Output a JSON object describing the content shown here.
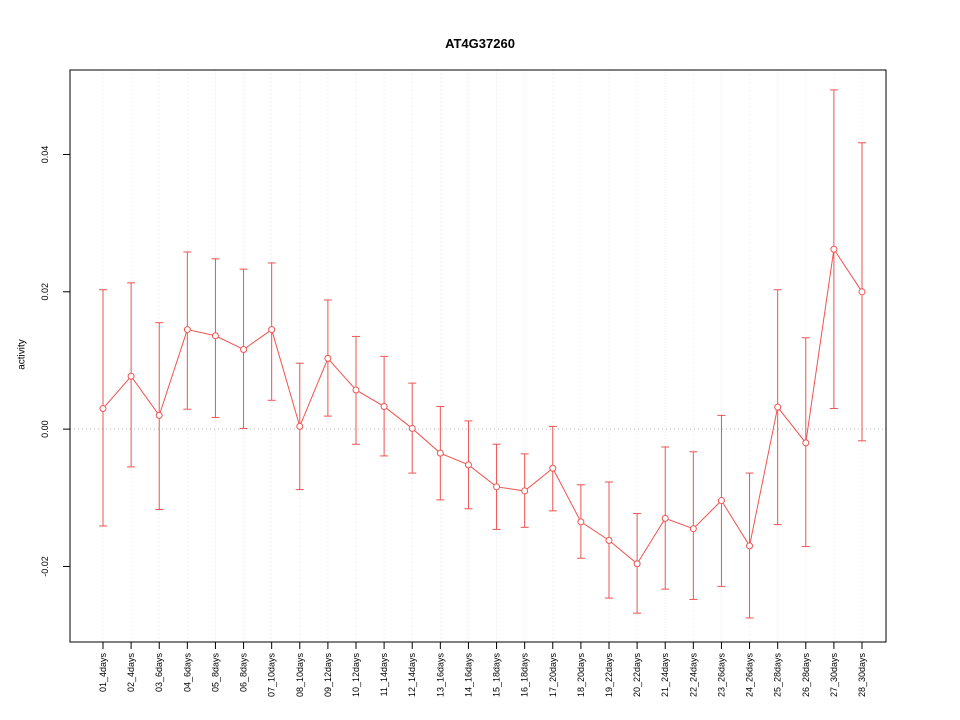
{
  "title": "AT4G37260",
  "chart_data": {
    "type": "line",
    "title": "AT4G37260",
    "xlabel": "",
    "ylabel": "activity",
    "legend": "none",
    "grid": "dotted vertical gridline at each category; dotted horizontal reference line at y=0",
    "ylim": [
      -0.031,
      0.0523
    ],
    "y_ticks": [
      -0.02,
      0,
      0.02,
      0.04
    ],
    "y_tick_labels": [
      "-0.02",
      "0.00",
      "0.02",
      "0.04"
    ],
    "categories": [
      "01_4days",
      "02_4days",
      "03_6days",
      "04_6days",
      "05_8days",
      "06_8days",
      "07_10days",
      "08_10days",
      "09_12days",
      "10_12days",
      "11_14days",
      "12_14days",
      "13_16days",
      "14_16days",
      "15_18days",
      "16_18days",
      "17_20days",
      "18_20days",
      "19_22days",
      "20_22days",
      "21_24days",
      "22_24days",
      "23_26days",
      "24_26days",
      "25_28days",
      "26_28days",
      "27_30days",
      "28_30days"
    ],
    "series": [
      {
        "name": "activity",
        "color": "#ef5350",
        "marker": "open-circle",
        "values": [
          0.003,
          0.0077,
          0.002,
          0.0145,
          0.0136,
          0.0116,
          0.0145,
          0.0004,
          0.0103,
          0.0057,
          0.0033,
          0.0001,
          -0.0035,
          -0.0052,
          -0.0084,
          -0.009,
          -0.0057,
          -0.0135,
          -0.0162,
          -0.0196,
          -0.013,
          -0.0145,
          -0.0104,
          -0.017,
          0.0032,
          -0.002,
          0.0262,
          0.02
        ],
        "error_upper": [
          0.0203,
          0.0213,
          0.0155,
          0.0258,
          0.0248,
          0.0233,
          0.0242,
          0.0096,
          0.0188,
          0.0135,
          0.0106,
          0.0067,
          0.0033,
          0.0012,
          -0.0022,
          -0.0036,
          0.0004,
          -0.0081,
          -0.0077,
          -0.0123,
          -0.0026,
          -0.0033,
          0.002,
          -0.0064,
          0.0203,
          0.0133,
          0.0494,
          0.0417
        ],
        "error_lower": [
          -0.0141,
          -0.0055,
          -0.0117,
          0.0029,
          0.0017,
          0.0001,
          0.0042,
          -0.0088,
          0.0019,
          -0.0022,
          -0.0039,
          -0.0064,
          -0.0103,
          -0.0116,
          -0.0146,
          -0.0143,
          -0.0119,
          -0.0188,
          -0.0246,
          -0.0268,
          -0.0233,
          -0.0248,
          -0.0229,
          -0.0275,
          -0.0139,
          -0.0171,
          0.003,
          -0.0017
        ]
      }
    ],
    "colors": {
      "series": "#ef5350",
      "gridline": "#e6e6e6",
      "zero_line": "#bbbbbb",
      "plot_border": "#000000"
    }
  }
}
